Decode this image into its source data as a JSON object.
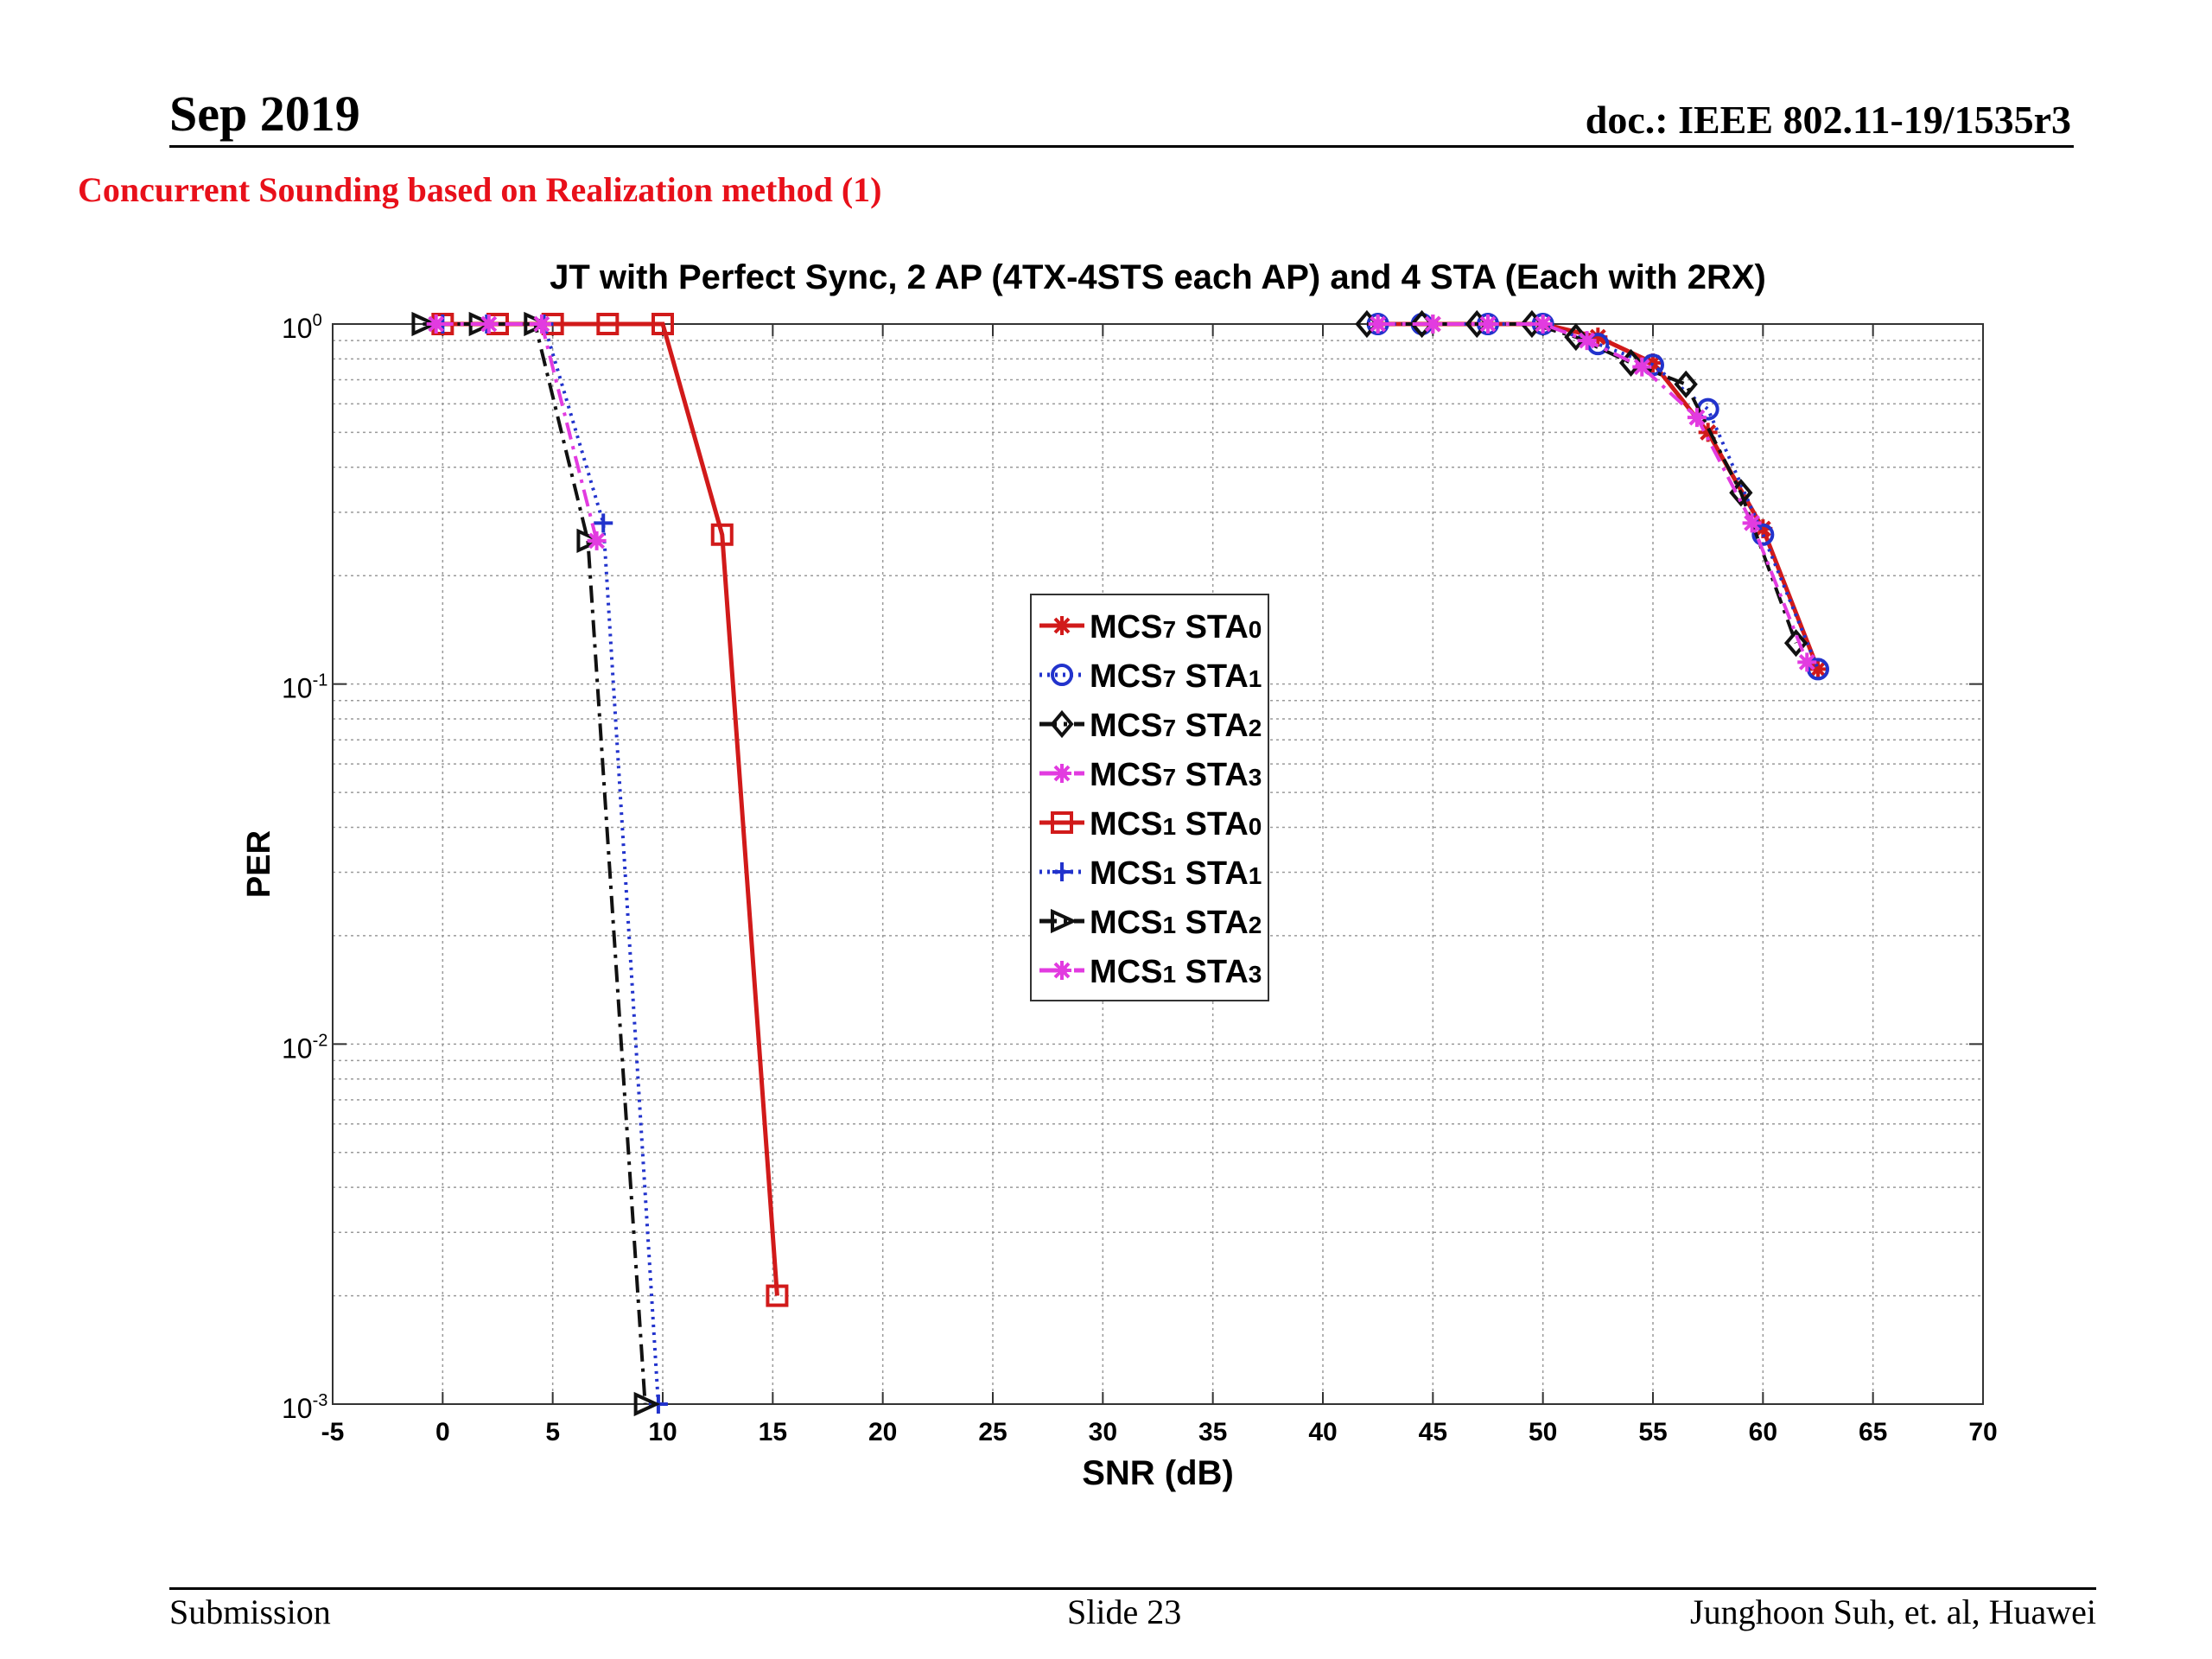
{
  "header": {
    "date": "Sep 2019",
    "doc_id": "doc.: IEEE 802.11-19/1535r3"
  },
  "slide": {
    "subtitle": "Concurrent Sounding based on Realization method (1)"
  },
  "footer": {
    "left": "Submission",
    "center": "Slide 23",
    "right": "Junghoon Suh, et. al, Huawei"
  },
  "chart_data": {
    "type": "line",
    "title": "JT with Perfect Sync, 2 AP (4TX-4STS each AP) and 4 STA (Each with 2RX)",
    "xlabel": "SNR (dB)",
    "ylabel": "PER",
    "xlim": [
      -5,
      70
    ],
    "ylim": [
      0.001,
      1
    ],
    "yscale": "log",
    "xticks": [
      -5,
      0,
      5,
      10,
      15,
      20,
      25,
      30,
      35,
      40,
      45,
      50,
      55,
      60,
      65,
      70
    ],
    "yticks": [
      {
        "value": 1,
        "base": "10",
        "exp": "0"
      },
      {
        "value": 0.1,
        "base": "10",
        "exp": "-1"
      },
      {
        "value": 0.01,
        "base": "10",
        "exp": "-2"
      },
      {
        "value": 0.001,
        "base": "10",
        "exp": "-3"
      }
    ],
    "grid": true,
    "legend_position": "center",
    "series": [
      {
        "name": "MCS7 STA0",
        "label": {
          "a": "MCS",
          "b": "7",
          "c": " STA",
          "d": "0"
        },
        "color": "#d11a1a",
        "dash": "solid",
        "marker": "star",
        "x": [
          42.5,
          45,
          47.5,
          50,
          52.5,
          55,
          57.5,
          60,
          62.5
        ],
        "y": [
          1,
          1,
          1,
          1,
          0.92,
          0.78,
          0.5,
          0.27,
          0.11
        ]
      },
      {
        "name": "MCS7 STA1",
        "label": {
          "a": "MCS",
          "b": "7",
          "c": " STA",
          "d": "1"
        },
        "color": "#2233cc",
        "dash": "dot",
        "marker": "circle",
        "x": [
          42.5,
          44.5,
          47.5,
          50,
          52.5,
          55,
          57.5,
          60,
          62.5
        ],
        "y": [
          1,
          1,
          1,
          1,
          0.88,
          0.77,
          0.58,
          0.26,
          0.11
        ]
      },
      {
        "name": "MCS7 STA2",
        "label": {
          "a": "MCS",
          "b": "7",
          "c": " STA",
          "d": "2"
        },
        "color": "#111111",
        "dash": "dashdot",
        "marker": "diamond",
        "x": [
          42,
          44.5,
          47,
          49.5,
          51.5,
          54,
          56.5,
          59,
          61.5
        ],
        "y": [
          1,
          1,
          1,
          1,
          0.92,
          0.78,
          0.68,
          0.34,
          0.13
        ]
      },
      {
        "name": "MCS7 STA3",
        "label": {
          "a": "MCS",
          "b": "7",
          "c": " STA",
          "d": "3"
        },
        "color": "#e23be0",
        "dash": "dashdot",
        "marker": "star",
        "x": [
          42.5,
          45,
          47.5,
          50,
          52,
          54.5,
          57,
          59.5,
          62
        ],
        "y": [
          1,
          1,
          1,
          1,
          0.9,
          0.76,
          0.55,
          0.28,
          0.115
        ]
      },
      {
        "name": "MCS1 STA0",
        "label": {
          "a": "MCS",
          "b": "1",
          "c": " STA",
          "d": "0"
        },
        "color": "#d11a1a",
        "dash": "solid",
        "marker": "square",
        "x": [
          0,
          2.5,
          5,
          7.5,
          10,
          12.7,
          15.2
        ],
        "y": [
          1,
          1,
          1,
          1,
          1,
          0.26,
          0.002
        ]
      },
      {
        "name": "MCS1 STA1",
        "label": {
          "a": "MCS",
          "b": "1",
          "c": " STA",
          "d": "1"
        },
        "color": "#2233cc",
        "dash": "dot",
        "marker": "plus",
        "x": [
          0,
          2,
          4.6,
          7.3,
          9.8
        ],
        "y": [
          1,
          1,
          1,
          0.28,
          0.001
        ]
      },
      {
        "name": "MCS1 STA2",
        "label": {
          "a": "MCS",
          "b": "1",
          "c": " STA",
          "d": "2"
        },
        "color": "#111111",
        "dash": "dashdot",
        "marker": "triangle",
        "x": [
          -0.9,
          1.7,
          4.2,
          6.6,
          9.2
        ],
        "y": [
          1,
          1,
          1,
          0.25,
          0.001
        ]
      },
      {
        "name": "MCS1 STA3",
        "label": {
          "a": "MCS",
          "b": "1",
          "c": " STA",
          "d": "3"
        },
        "color": "#e23be0",
        "dash": "dashdot",
        "marker": "star",
        "x": [
          -0.3,
          2.1,
          4.5,
          7
        ],
        "y": [
          1,
          1,
          1,
          0.25
        ]
      }
    ]
  }
}
